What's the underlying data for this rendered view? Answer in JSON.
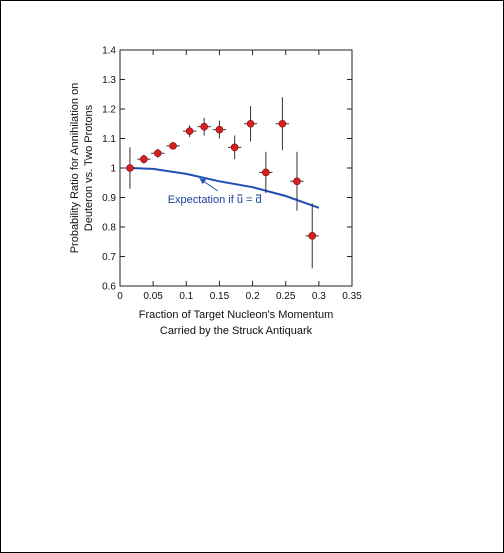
{
  "chart_data": {
    "type": "scatter",
    "xlabel_lines": [
      "Fraction of Target Nucleon's Momentum",
      "Carried by the Struck Antiquark"
    ],
    "ylabel_lines": [
      "Probability Ratio for Annihilation on",
      "Deuteron vs. Two Protons"
    ],
    "xlim": [
      0,
      0.35
    ],
    "ylim": [
      0.6,
      1.4
    ],
    "x_ticks": [
      0,
      0.05,
      0.1,
      0.15,
      0.2,
      0.25,
      0.3,
      0.35
    ],
    "x_tick_labels": [
      "0",
      "0.05",
      "0.1",
      "0.15",
      "0.2",
      "0.25",
      "0.3",
      "0.35"
    ],
    "y_ticks": [
      0.6,
      0.7,
      0.8,
      0.9,
      1.0,
      1.1,
      1.2,
      1.3,
      1.4
    ],
    "y_tick_labels": [
      "0.6",
      "0.7",
      "0.8",
      "0.9",
      "1",
      "1.1",
      "1.2",
      "1.3",
      "1.4"
    ],
    "grid": false,
    "colors": {
      "points": "#d62020",
      "curve": "#1f4fb5",
      "axes": "#222222"
    },
    "series": [
      {
        "points": [
          {
            "x": 0.015,
            "y": 1.0,
            "err": 0.07,
            "xerr": 0.01
          },
          {
            "x": 0.036,
            "y": 1.03,
            "err": 0.015,
            "xerr": 0.01
          },
          {
            "x": 0.057,
            "y": 1.05,
            "err": 0.015,
            "xerr": 0.01
          },
          {
            "x": 0.08,
            "y": 1.075,
            "err": 0.012,
            "xerr": 0.01
          },
          {
            "x": 0.105,
            "y": 1.125,
            "err": 0.02,
            "xerr": 0.01
          },
          {
            "x": 0.127,
            "y": 1.14,
            "err": 0.03,
            "xerr": 0.01
          },
          {
            "x": 0.15,
            "y": 1.13,
            "err": 0.03,
            "xerr": 0.01
          },
          {
            "x": 0.173,
            "y": 1.07,
            "err": 0.04,
            "xerr": 0.01
          },
          {
            "x": 0.197,
            "y": 1.15,
            "err": 0.06,
            "xerr": 0.01
          },
          {
            "x": 0.22,
            "y": 0.985,
            "err": 0.07,
            "xerr": 0.01
          },
          {
            "x": 0.245,
            "y": 1.15,
            "err": 0.09,
            "xerr": 0.01
          },
          {
            "x": 0.267,
            "y": 0.955,
            "err": 0.1,
            "xerr": 0.01
          },
          {
            "x": 0.29,
            "y": 0.77,
            "err": 0.11,
            "xerr": 0.01
          }
        ]
      },
      {
        "points": [
          {
            "x": 0.015,
            "y": 1.0
          },
          {
            "x": 0.05,
            "y": 0.997
          },
          {
            "x": 0.1,
            "y": 0.98
          },
          {
            "x": 0.15,
            "y": 0.955
          },
          {
            "x": 0.2,
            "y": 0.935
          },
          {
            "x": 0.25,
            "y": 0.905
          },
          {
            "x": 0.3,
            "y": 0.865
          }
        ]
      }
    ],
    "annotation": {
      "text_parts": [
        "Expectation if ",
        "u",
        " = ",
        "d"
      ],
      "x": 0.072,
      "y": 0.895,
      "arrow_to": {
        "x": 0.12,
        "y": 0.975
      }
    }
  }
}
